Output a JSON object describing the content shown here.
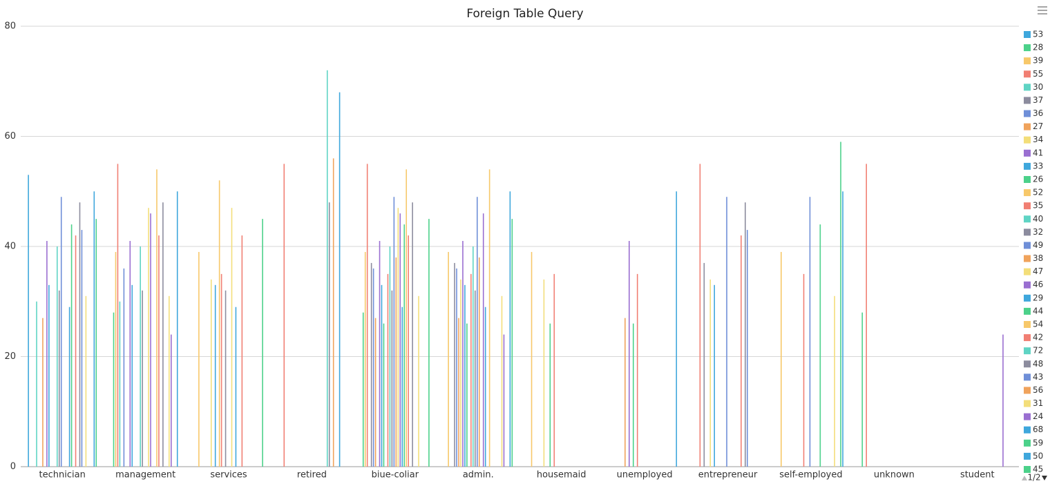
{
  "chart_data": {
    "type": "bar",
    "title": "Foreign Table Query",
    "categories": [
      "technician",
      "management",
      "services",
      "retired",
      "biue-coliar",
      "admin.",
      "housemaid",
      "unemployed",
      "entrepreneur",
      "self-employed",
      "unknown",
      "student"
    ],
    "ylim": [
      0,
      80
    ],
    "yticks": [
      0,
      20,
      40,
      60,
      80
    ],
    "grid": true,
    "legend": "right",
    "legend_page": "1/2",
    "series": [
      {
        "name": "53",
        "color": "#3fa7dc",
        "values": [
          53,
          null,
          null,
          null,
          null,
          null,
          null,
          null,
          null,
          null,
          null,
          null
        ]
      },
      {
        "name": "28",
        "color": "#4cd18a",
        "values": [
          null,
          28,
          null,
          null,
          28,
          null,
          null,
          null,
          null,
          null,
          28,
          null
        ]
      },
      {
        "name": "39",
        "color": "#f7c86a",
        "values": [
          null,
          39,
          39,
          null,
          39,
          39,
          39,
          null,
          null,
          39,
          null,
          null
        ]
      },
      {
        "name": "55",
        "color": "#f17f73",
        "values": [
          null,
          55,
          null,
          55,
          55,
          null,
          null,
          null,
          55,
          null,
          55,
          null
        ]
      },
      {
        "name": "30",
        "color": "#5fd4c4",
        "values": [
          30,
          30,
          null,
          null,
          null,
          null,
          null,
          null,
          null,
          null,
          null,
          null
        ]
      },
      {
        "name": "37",
        "color": "#8c8c9e",
        "values": [
          null,
          null,
          null,
          null,
          37,
          37,
          null,
          null,
          37,
          null,
          null,
          null
        ]
      },
      {
        "name": "36",
        "color": "#6f8fd8",
        "values": [
          null,
          36,
          null,
          null,
          36,
          36,
          null,
          null,
          null,
          null,
          null,
          null
        ]
      },
      {
        "name": "27",
        "color": "#f0a35c",
        "values": [
          27,
          null,
          null,
          null,
          27,
          27,
          null,
          27,
          null,
          null,
          null,
          null
        ]
      },
      {
        "name": "34",
        "color": "#f3de7a",
        "values": [
          null,
          null,
          34,
          null,
          null,
          34,
          34,
          null,
          34,
          null,
          null,
          null
        ]
      },
      {
        "name": "41",
        "color": "#9a6fd1",
        "values": [
          41,
          41,
          null,
          null,
          41,
          41,
          null,
          41,
          null,
          null,
          null,
          null
        ]
      },
      {
        "name": "33",
        "color": "#3fa7dc",
        "values": [
          33,
          33,
          33,
          null,
          33,
          33,
          null,
          null,
          33,
          null,
          null,
          null
        ]
      },
      {
        "name": "26",
        "color": "#4cd18a",
        "values": [
          null,
          null,
          null,
          null,
          26,
          26,
          26,
          26,
          null,
          null,
          null,
          null
        ]
      },
      {
        "name": "52",
        "color": "#f7c86a",
        "values": [
          null,
          null,
          52,
          null,
          null,
          null,
          null,
          null,
          null,
          null,
          null,
          null
        ]
      },
      {
        "name": "35",
        "color": "#f17f73",
        "values": [
          null,
          null,
          35,
          null,
          35,
          35,
          35,
          35,
          null,
          35,
          null,
          null
        ]
      },
      {
        "name": "40",
        "color": "#5fd4c4",
        "values": [
          40,
          40,
          null,
          null,
          40,
          40,
          null,
          null,
          null,
          null,
          null,
          null
        ]
      },
      {
        "name": "32",
        "color": "#8c8c9e",
        "values": [
          32,
          32,
          32,
          null,
          32,
          32,
          null,
          null,
          null,
          null,
          null,
          null
        ]
      },
      {
        "name": "49",
        "color": "#6f8fd8",
        "values": [
          49,
          null,
          null,
          null,
          49,
          49,
          null,
          null,
          49,
          49,
          null,
          null
        ]
      },
      {
        "name": "38",
        "color": "#f0a35c",
        "values": [
          null,
          null,
          null,
          null,
          38,
          38,
          null,
          null,
          null,
          null,
          null,
          null
        ]
      },
      {
        "name": "47",
        "color": "#f3de7a",
        "values": [
          null,
          47,
          47,
          null,
          47,
          null,
          null,
          null,
          null,
          null,
          null,
          null
        ]
      },
      {
        "name": "46",
        "color": "#9a6fd1",
        "values": [
          null,
          46,
          null,
          null,
          46,
          46,
          null,
          null,
          null,
          null,
          null,
          null
        ]
      },
      {
        "name": "29",
        "color": "#3fa7dc",
        "values": [
          29,
          null,
          29,
          null,
          29,
          29,
          null,
          null,
          null,
          null,
          null,
          null
        ]
      },
      {
        "name": "44",
        "color": "#4cd18a",
        "values": [
          44,
          null,
          null,
          null,
          44,
          null,
          null,
          null,
          null,
          44,
          null,
          null
        ]
      },
      {
        "name": "54",
        "color": "#f7c86a",
        "values": [
          null,
          54,
          null,
          null,
          54,
          54,
          null,
          null,
          null,
          null,
          null,
          null
        ]
      },
      {
        "name": "42",
        "color": "#f17f73",
        "values": [
          42,
          42,
          42,
          null,
          42,
          null,
          null,
          null,
          42,
          null,
          null,
          null
        ]
      },
      {
        "name": "72",
        "color": "#5fd4c4",
        "values": [
          null,
          null,
          null,
          72,
          null,
          null,
          null,
          null,
          null,
          null,
          null,
          null
        ]
      },
      {
        "name": "48",
        "color": "#8c8c9e",
        "values": [
          48,
          48,
          null,
          48,
          48,
          null,
          null,
          null,
          48,
          null,
          null,
          null
        ]
      },
      {
        "name": "43",
        "color": "#6f8fd8",
        "values": [
          43,
          null,
          null,
          null,
          null,
          null,
          null,
          null,
          43,
          null,
          null,
          null
        ]
      },
      {
        "name": "56",
        "color": "#f0a35c",
        "values": [
          null,
          null,
          null,
          56,
          null,
          null,
          null,
          null,
          null,
          null,
          null,
          null
        ]
      },
      {
        "name": "31",
        "color": "#f3de7a",
        "values": [
          31,
          31,
          null,
          null,
          31,
          31,
          null,
          null,
          null,
          31,
          null,
          null
        ]
      },
      {
        "name": "24",
        "color": "#9a6fd1",
        "values": [
          null,
          24,
          null,
          null,
          null,
          24,
          null,
          null,
          null,
          null,
          null,
          24
        ]
      },
      {
        "name": "68",
        "color": "#3fa7dc",
        "values": [
          null,
          null,
          null,
          68,
          null,
          null,
          null,
          null,
          null,
          null,
          null,
          null
        ]
      },
      {
        "name": "59",
        "color": "#4cd18a",
        "values": [
          null,
          null,
          null,
          null,
          null,
          null,
          null,
          null,
          null,
          59,
          null,
          null
        ]
      },
      {
        "name": "50",
        "color": "#3fa7dc",
        "values": [
          50,
          50,
          null,
          null,
          null,
          50,
          null,
          50,
          null,
          50,
          null,
          null
        ]
      },
      {
        "name": "45",
        "color": "#4cd18a",
        "values": [
          45,
          null,
          45,
          null,
          45,
          45,
          null,
          null,
          null,
          null,
          null,
          null
        ]
      }
    ]
  }
}
